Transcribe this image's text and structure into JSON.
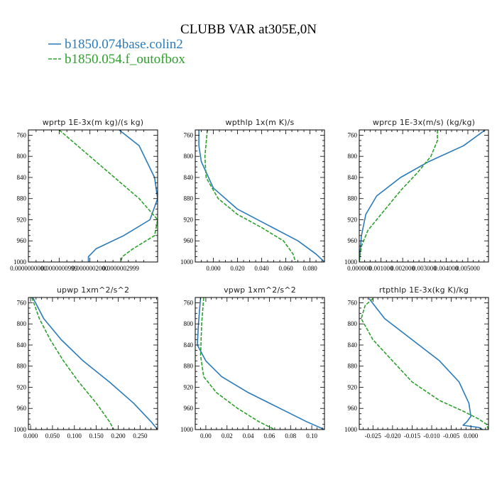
{
  "title": "CLUBB VAR at305E,0N",
  "legend": [
    {
      "label": "b1850.074base.colin2",
      "color": "#2b7bba",
      "dash": ""
    },
    {
      "label": "b1850.054.f_outofbox",
      "color": "#2ca02c",
      "dash": "5,2"
    }
  ],
  "chart_data": [
    {
      "type": "line",
      "title": "wprtp  1E-3x(m kg)/(s kg)",
      "xlim": [
        0.0,
        4.2e-07
      ],
      "ylim": [
        1000,
        750
      ],
      "xticks": [
        0.0,
        1e-07,
        2e-07,
        3e-07
      ],
      "xtick_labels": [
        "0.0000000000",
        "0.0000000999",
        "0.0000002000",
        "0.0000002999"
      ],
      "yticks": [
        760,
        800,
        840,
        880,
        920,
        960,
        1000
      ],
      "series": [
        {
          "name": "b1850.074base.colin2",
          "points": [
            [
              2.95e-07,
              750
            ],
            [
              3.6e-07,
              780
            ],
            [
              4.1e-07,
              840
            ],
            [
              4.2e-07,
              880
            ],
            [
              3.95e-07,
              920
            ],
            [
              3.1e-07,
              950
            ],
            [
              2.2e-07,
              975
            ],
            [
              1.95e-07,
              990
            ],
            [
              1.95e-07,
              1000
            ]
          ]
        },
        {
          "name": "b1850.054.f_outofbox",
          "points": [
            [
              1e-07,
              750
            ],
            [
              1.8e-07,
              790
            ],
            [
              2.8e-07,
              840
            ],
            [
              3.6e-07,
              880
            ],
            [
              4.2e-07,
              920
            ],
            [
              4.1e-07,
              950
            ],
            [
              3.4e-07,
              975
            ],
            [
              3.05e-07,
              990
            ],
            [
              3e-07,
              1000
            ]
          ]
        }
      ]
    },
    {
      "type": "line",
      "title": "wpthlp  1x(m K)/s",
      "xlim": [
        -0.015,
        0.092
      ],
      "ylim": [
        1000,
        750
      ],
      "xticks": [
        0.0,
        0.02,
        0.04,
        0.06,
        0.08
      ],
      "xtick_labels": [
        "0.000",
        "0.020",
        "0.040",
        "0.060",
        "0.080"
      ],
      "yticks": [
        760,
        800,
        840,
        880,
        920,
        960,
        1000
      ],
      "series": [
        {
          "name": "b1850.074base.colin2",
          "points": [
            [
              -0.012,
              750
            ],
            [
              -0.012,
              780
            ],
            [
              -0.01,
              810
            ],
            [
              -0.006,
              830
            ],
            [
              0.0,
              860
            ],
            [
              0.02,
              900
            ],
            [
              0.045,
              930
            ],
            [
              0.07,
              960
            ],
            [
              0.085,
              985
            ],
            [
              0.092,
              1000
            ]
          ]
        },
        {
          "name": "b1850.054.f_outofbox",
          "points": [
            [
              -0.005,
              750
            ],
            [
              -0.007,
              800
            ],
            [
              -0.006,
              840
            ],
            [
              0.004,
              880
            ],
            [
              0.02,
              910
            ],
            [
              0.04,
              935
            ],
            [
              0.058,
              960
            ],
            [
              0.066,
              985
            ],
            [
              0.068,
              1000
            ]
          ]
        }
      ]
    },
    {
      "type": "line",
      "title": "wprcp  1E-3x(m/s) (kg/kg)",
      "xlim": [
        0.0,
        0.00595
      ],
      "ylim": [
        1000,
        750
      ],
      "xticks": [
        0.0,
        0.001,
        0.002,
        0.003,
        0.004,
        0.005
      ],
      "xtick_labels": [
        "0.000000",
        "0.001000",
        "0.002000",
        "0.003000",
        "0.004000",
        "0.005000"
      ],
      "yticks": [
        760,
        800,
        840,
        880,
        920,
        960,
        1000
      ],
      "series": [
        {
          "name": "b1850.074base.colin2",
          "points": [
            [
              0.0058,
              750
            ],
            [
              0.0048,
              780
            ],
            [
              0.0032,
              810
            ],
            [
              0.0019,
              840
            ],
            [
              0.0008,
              875
            ],
            [
              0.0003,
              910
            ],
            [
              0.0001,
              950
            ],
            [
              0.0,
              1000
            ]
          ]
        },
        {
          "name": "b1850.054.f_outofbox",
          "points": [
            [
              0.0036,
              750
            ],
            [
              0.0036,
              770
            ],
            [
              0.0033,
              800
            ],
            [
              0.0027,
              830
            ],
            [
              0.0019,
              865
            ],
            [
              0.001,
              910
            ],
            [
              0.0004,
              940
            ],
            [
              0.0001,
              970
            ],
            [
              0.0,
              1000
            ]
          ]
        }
      ]
    },
    {
      "type": "line",
      "title": "upwp  1xm^2/s^2",
      "xlim": [
        -0.005,
        0.29
      ],
      "ylim": [
        1000,
        750
      ],
      "xticks": [
        0.0,
        0.05,
        0.1,
        0.15,
        0.2,
        0.25
      ],
      "xtick_labels": [
        "0.000",
        "0.050",
        "0.100",
        "0.150",
        "0.200",
        "0.250"
      ],
      "yticks": [
        760,
        800,
        840,
        880,
        920,
        960,
        1000
      ],
      "series": [
        {
          "name": "b1850.074base.colin2",
          "points": [
            [
              0.005,
              750
            ],
            [
              0.03,
              790
            ],
            [
              0.07,
              830
            ],
            [
              0.12,
              870
            ],
            [
              0.18,
              910
            ],
            [
              0.235,
              950
            ],
            [
              0.275,
              985
            ],
            [
              0.29,
              1000
            ]
          ]
        },
        {
          "name": "b1850.054.f_outofbox",
          "points": [
            [
              0.003,
              750
            ],
            [
              0.02,
              790
            ],
            [
              0.045,
              830
            ],
            [
              0.075,
              870
            ],
            [
              0.11,
              910
            ],
            [
              0.15,
              950
            ],
            [
              0.18,
              985
            ],
            [
              0.19,
              1000
            ]
          ]
        }
      ]
    },
    {
      "type": "line",
      "title": "vpwp  1xm^2/s^2",
      "xlim": [
        -0.01,
        0.112
      ],
      "ylim": [
        1000,
        750
      ],
      "xticks": [
        0.0,
        0.02,
        0.04,
        0.06,
        0.08,
        0.1
      ],
      "xtick_labels": [
        "0.00",
        "0.02",
        "0.04",
        "0.06",
        "0.08",
        "0.10"
      ],
      "yticks": [
        760,
        800,
        840,
        880,
        920,
        960,
        1000
      ],
      "series": [
        {
          "name": "b1850.074base.colin2",
          "points": [
            [
              -0.005,
              750
            ],
            [
              -0.007,
              800
            ],
            [
              -0.008,
              840
            ],
            [
              0.0,
              870
            ],
            [
              0.015,
              900
            ],
            [
              0.04,
              930
            ],
            [
              0.07,
              960
            ],
            [
              0.095,
              985
            ],
            [
              0.112,
              1000
            ]
          ]
        },
        {
          "name": "b1850.054.f_outofbox",
          "points": [
            [
              -0.002,
              750
            ],
            [
              -0.004,
              800
            ],
            [
              -0.005,
              860
            ],
            [
              -0.002,
              900
            ],
            [
              0.01,
              930
            ],
            [
              0.03,
              960
            ],
            [
              0.05,
              985
            ],
            [
              0.065,
              1000
            ]
          ]
        }
      ]
    },
    {
      "type": "line",
      "title": "rtpthlp  1E-3x(kg K)/kg",
      "xlim": [
        -0.0285,
        0.0045
      ],
      "ylim": [
        1000,
        750
      ],
      "xticks": [
        -0.025,
        -0.02,
        -0.015,
        -0.01,
        -0.005,
        0.0
      ],
      "xtick_labels": [
        "-0.025",
        "-0.020",
        "-0.015",
        "-0.010",
        "-0.005",
        "0.000"
      ],
      "yticks": [
        760,
        800,
        840,
        880,
        920,
        960,
        1000
      ],
      "series": [
        {
          "name": "b1850.074base.colin2",
          "points": [
            [
              -0.026,
              752
            ],
            [
              -0.022,
              790
            ],
            [
              -0.015,
              830
            ],
            [
              -0.008,
              870
            ],
            [
              -0.003,
              910
            ],
            [
              -0.0005,
              950
            ],
            [
              0.0,
              975
            ],
            [
              -0.001,
              985
            ],
            [
              -0.002,
              992
            ],
            [
              0.002,
              996
            ],
            [
              0.003,
              1000
            ]
          ]
        },
        {
          "name": "b1850.054.f_outofbox",
          "points": [
            [
              -0.025,
              752
            ],
            [
              -0.027,
              765
            ],
            [
              -0.028,
              790
            ],
            [
              -0.025,
              830
            ],
            [
              -0.02,
              870
            ],
            [
              -0.015,
              910
            ],
            [
              -0.008,
              945
            ],
            [
              -0.002,
              965
            ],
            [
              0.002,
              980
            ],
            [
              0.004,
              990
            ],
            [
              0.0045,
              1000
            ]
          ]
        }
      ]
    }
  ]
}
